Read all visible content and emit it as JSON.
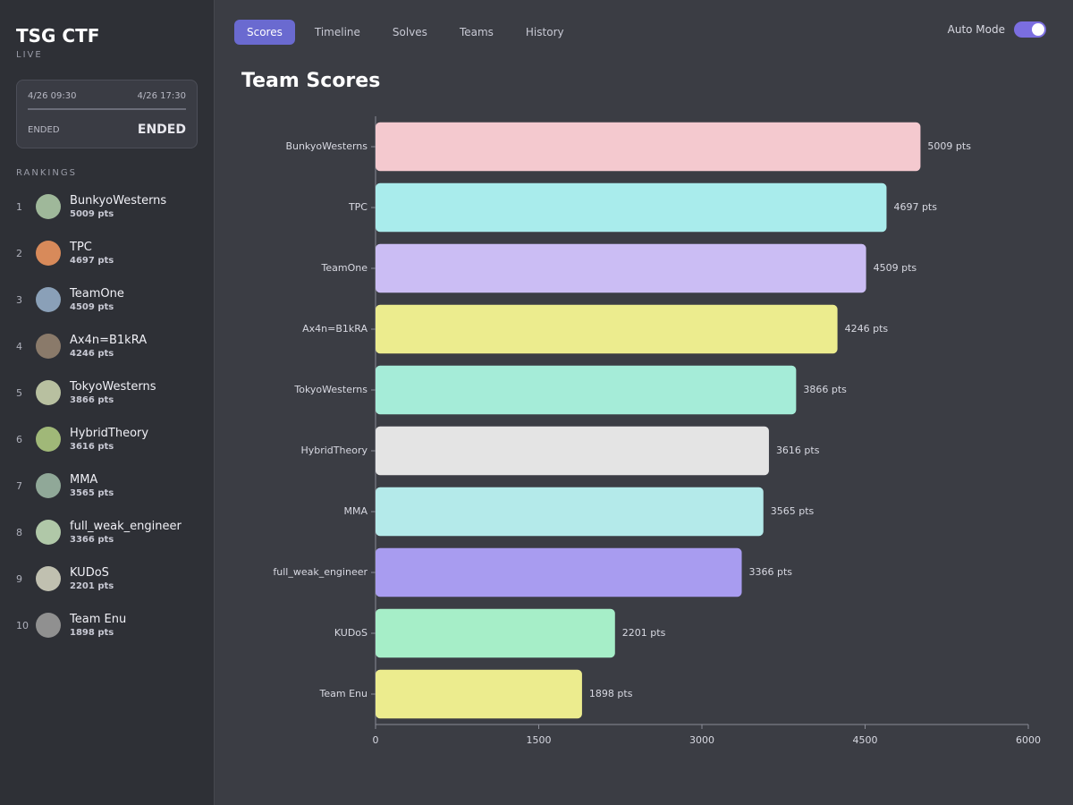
{
  "sidebar": {
    "title": "TSG CTF",
    "subtitle": "LIVE",
    "status_card": {
      "start": "4/26 09:30",
      "end": "4/26 17:30",
      "status_label": "ENDED",
      "status": "ENDED"
    },
    "rankings_heading": "RANKINGS",
    "rankings": [
      {
        "rank": 1,
        "name": "BunkyoWesterns",
        "score": "5009 pts"
      },
      {
        "rank": 2,
        "name": "TPC",
        "score": "4697 pts"
      },
      {
        "rank": 3,
        "name": "TeamOne",
        "score": "4509 pts"
      },
      {
        "rank": 4,
        "name": "Ax4n=B1kRA",
        "score": "4246 pts"
      },
      {
        "rank": 5,
        "name": "TokyoWesterns",
        "score": "3866 pts"
      },
      {
        "rank": 6,
        "name": "HybridTheory",
        "score": "3616 pts"
      },
      {
        "rank": 7,
        "name": "MMA",
        "score": "3565 pts"
      },
      {
        "rank": 8,
        "name": "full_weak_engineer",
        "score": "3366 pts"
      },
      {
        "rank": 9,
        "name": "KUDoS",
        "score": "2201 pts"
      },
      {
        "rank": 10,
        "name": "Team Enu",
        "score": "1898 pts"
      }
    ]
  },
  "tabs": [
    "Scores",
    "Timeline",
    "Solves",
    "Teams",
    "History"
  ],
  "auto_mode": "Auto Mode",
  "chart_data": {
    "type": "hbar",
    "title": "Team Scores",
    "categories": [
      "BunkyoWesterns",
      "TPC",
      "TeamOne",
      "Ax4n=B1kRA",
      "TokyoWesterns",
      "HybridTheory",
      "MMA",
      "full_weak_engineer",
      "KUDoS",
      "Team Enu"
    ],
    "values": [
      5009,
      4697,
      4509,
      4246,
      3866,
      3616,
      3565,
      3366,
      2201,
      1898
    ],
    "value_labels": [
      "5009 pts",
      "4697 pts",
      "4509 pts",
      "4246 pts",
      "3866 pts",
      "3616 pts",
      "3565 pts",
      "3366 pts",
      "2201 pts",
      "1898 pts"
    ],
    "colors": [
      "#f4c9cf",
      "#a9ecec",
      "#cbbdf4",
      "#ecec8e",
      "#a5ecd8",
      "#e4e4e4",
      "#b4eaea",
      "#a89cf0",
      "#a6eec8",
      "#ecec8e"
    ],
    "xlim": [
      0,
      6000
    ],
    "xticks": [
      0,
      1500,
      3000,
      4500,
      6000
    ]
  }
}
